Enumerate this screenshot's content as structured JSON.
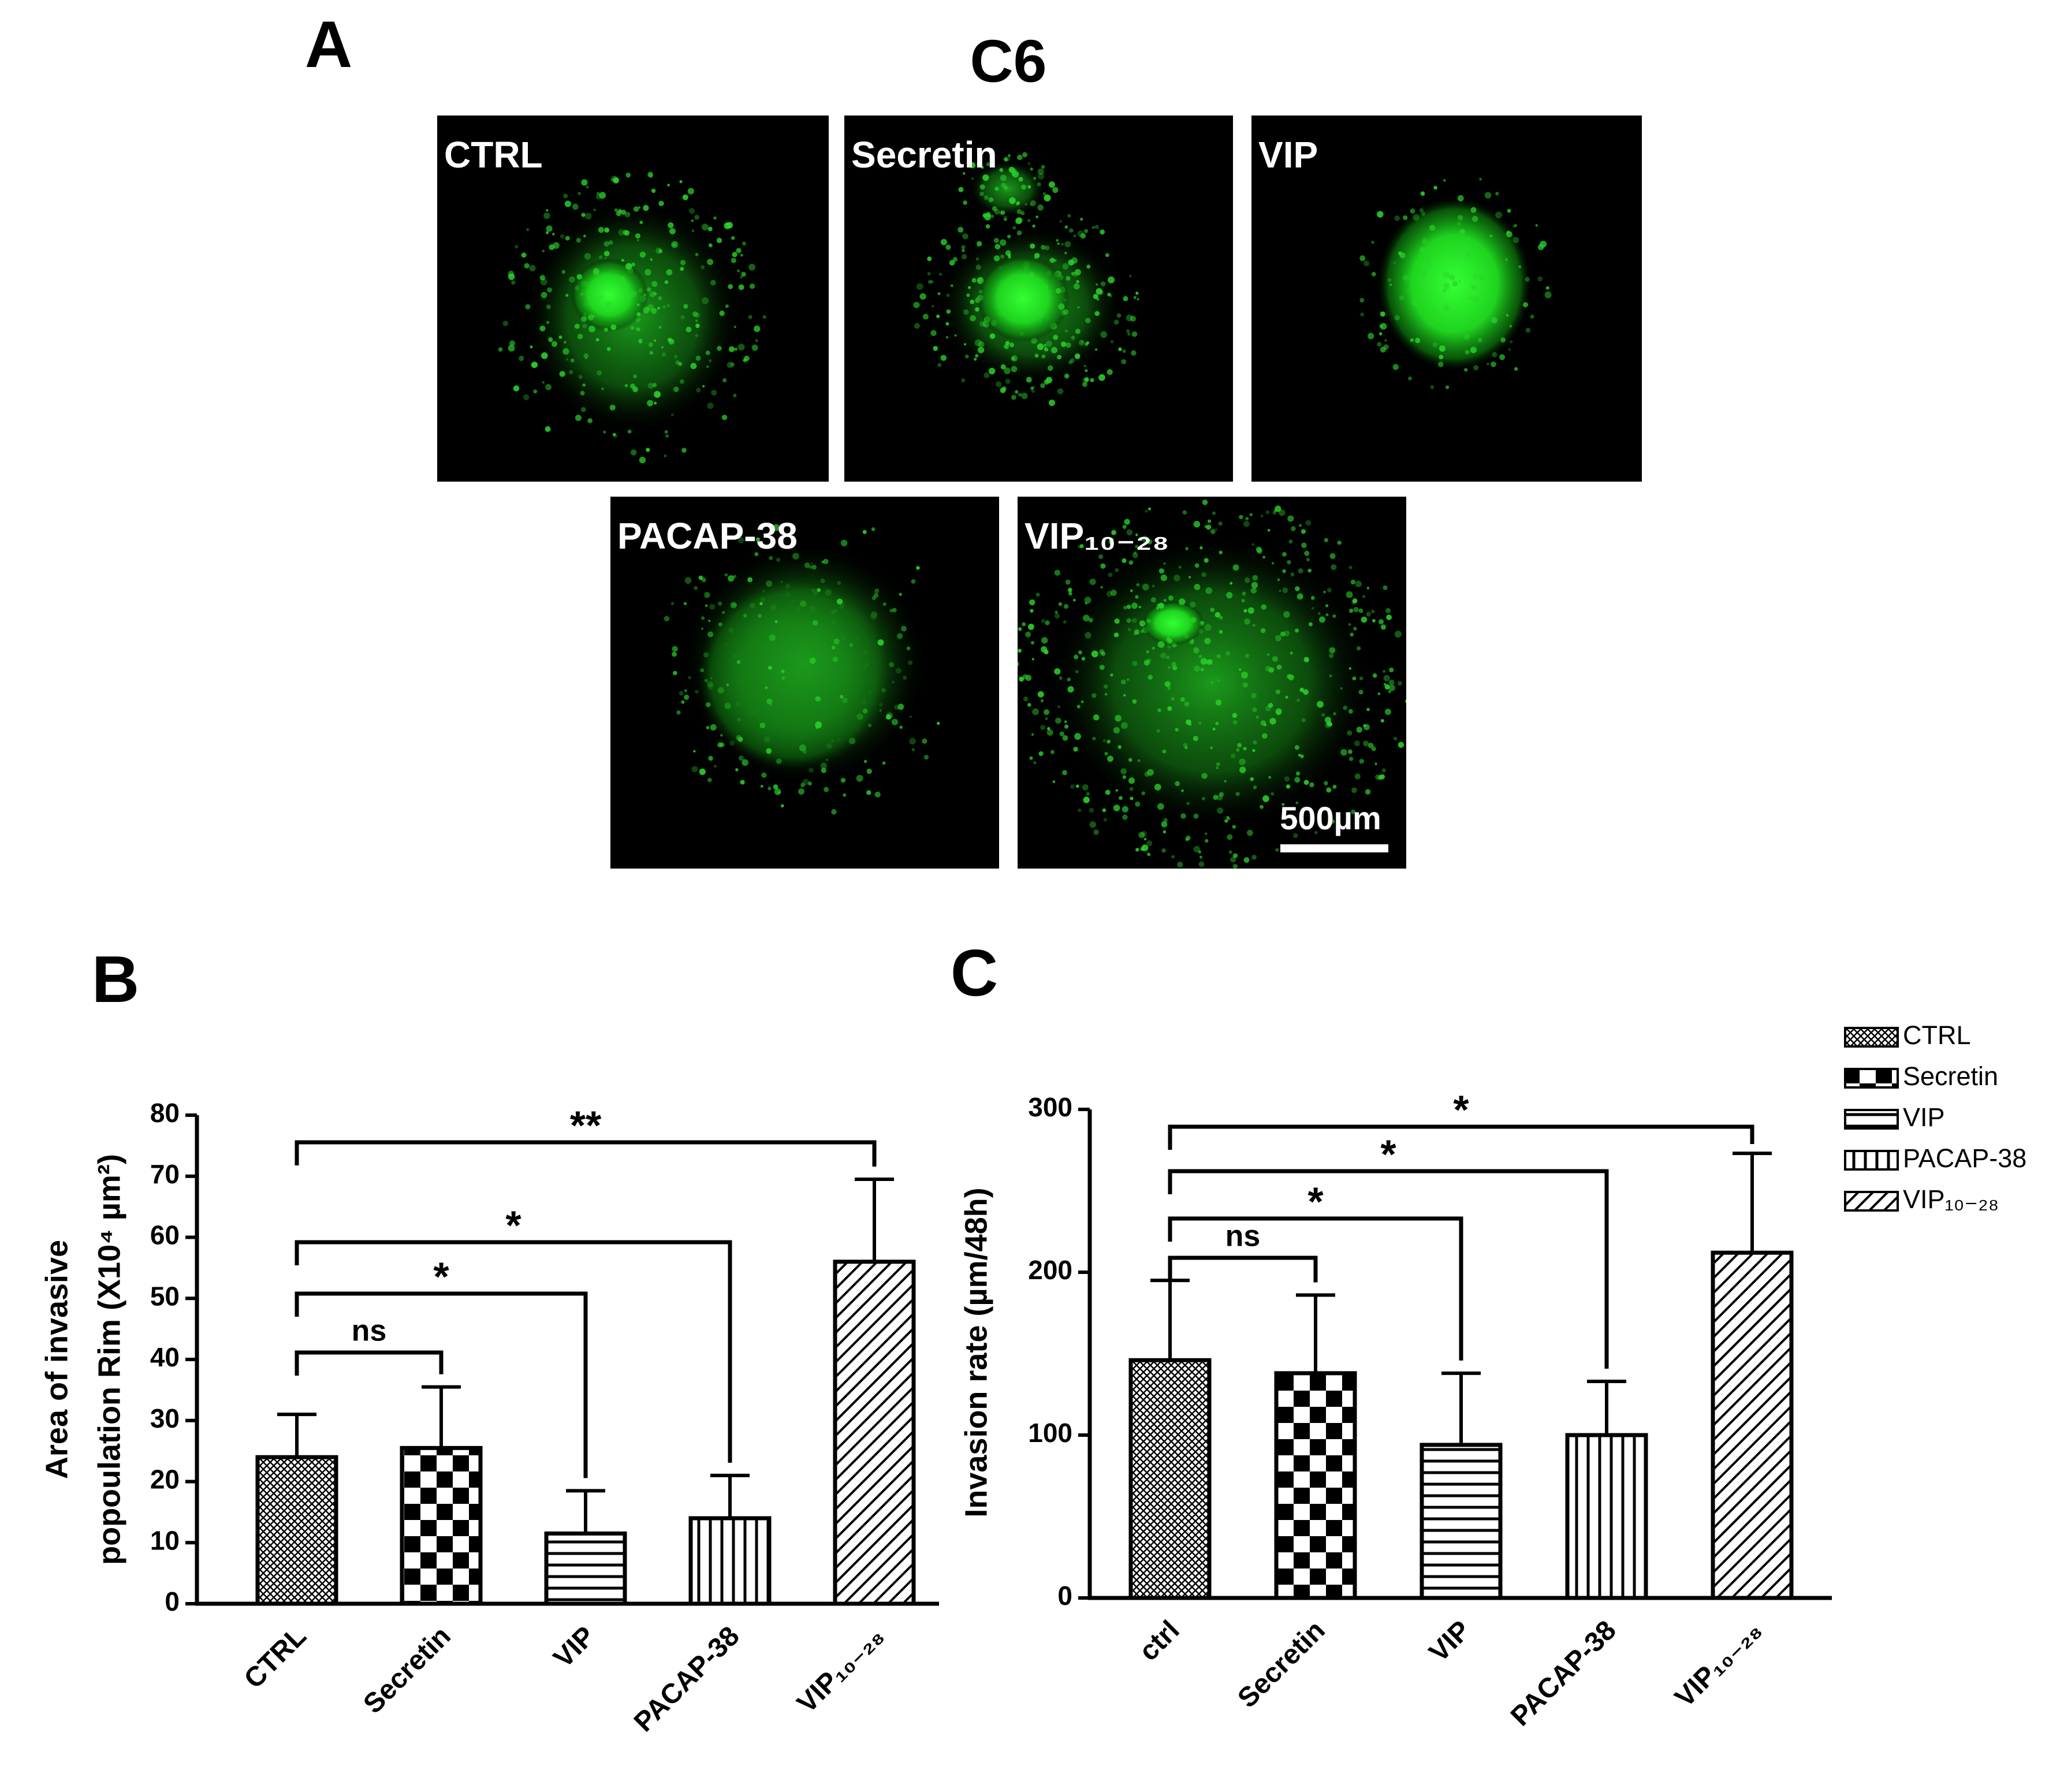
{
  "panel_a": {
    "label": "A",
    "title": "C6",
    "images": [
      "CTRL",
      "Secretin",
      "VIP",
      "PACAP-38",
      "VIP₁₀₋₂₈"
    ],
    "scale_bar": "500µm"
  },
  "chart_data": [
    {
      "type": "bar",
      "panel": "B",
      "ylabel": [
        "Area of invasive",
        "popoulation Rim (X10⁴ µm²)"
      ],
      "categories": [
        "CTRL",
        "Secretin",
        "VIP",
        "PACAP-38",
        "VIP₁₀₋₂₈"
      ],
      "values": [
        24,
        25.5,
        11.5,
        14,
        56
      ],
      "errors": [
        7,
        10,
        7,
        7,
        13.5
      ],
      "patterns": [
        "crosshatch",
        "checker",
        "horizontal",
        "vertical",
        "diagonal"
      ],
      "ylim": [
        0,
        80
      ],
      "yticks": [
        0,
        10,
        20,
        30,
        40,
        50,
        60,
        70,
        80
      ],
      "comparisons": [
        {
          "pair": [
            "CTRL",
            "Secretin"
          ],
          "label": "ns"
        },
        {
          "pair": [
            "CTRL",
            "VIP"
          ],
          "label": "*"
        },
        {
          "pair": [
            "CTRL",
            "PACAP-38"
          ],
          "label": "*"
        },
        {
          "pair": [
            "CTRL",
            "VIP₁₀₋₂₈"
          ],
          "label": "**"
        }
      ]
    },
    {
      "type": "bar",
      "panel": "C",
      "ylabel": [
        "Invasion rate (µm/48h)"
      ],
      "categories": [
        "ctrl",
        "Secretin",
        "VIP",
        "PACAP-38",
        "VIP₁₀₋₂₈"
      ],
      "values": [
        146,
        138,
        94,
        100,
        212
      ],
      "errors": [
        49,
        48,
        44,
        33,
        61
      ],
      "patterns": [
        "crosshatch",
        "checker",
        "horizontal",
        "vertical",
        "diagonal"
      ],
      "ylim": [
        0,
        300
      ],
      "yticks": [
        0,
        100,
        200,
        300
      ],
      "comparisons": [
        {
          "pair": [
            "ctrl",
            "Secretin"
          ],
          "label": "ns"
        },
        {
          "pair": [
            "ctrl",
            "VIP"
          ],
          "label": "*"
        },
        {
          "pair": [
            "ctrl",
            "PACAP-38"
          ],
          "label": "*"
        },
        {
          "pair": [
            "ctrl",
            "VIP₁₀₋₂₈"
          ],
          "label": "*"
        }
      ],
      "legend": {
        "entries": [
          "CTRL",
          "Secretin",
          "VIP",
          "PACAP-38",
          "VIP₁₀₋₂₈"
        ],
        "position": "right"
      }
    }
  ]
}
